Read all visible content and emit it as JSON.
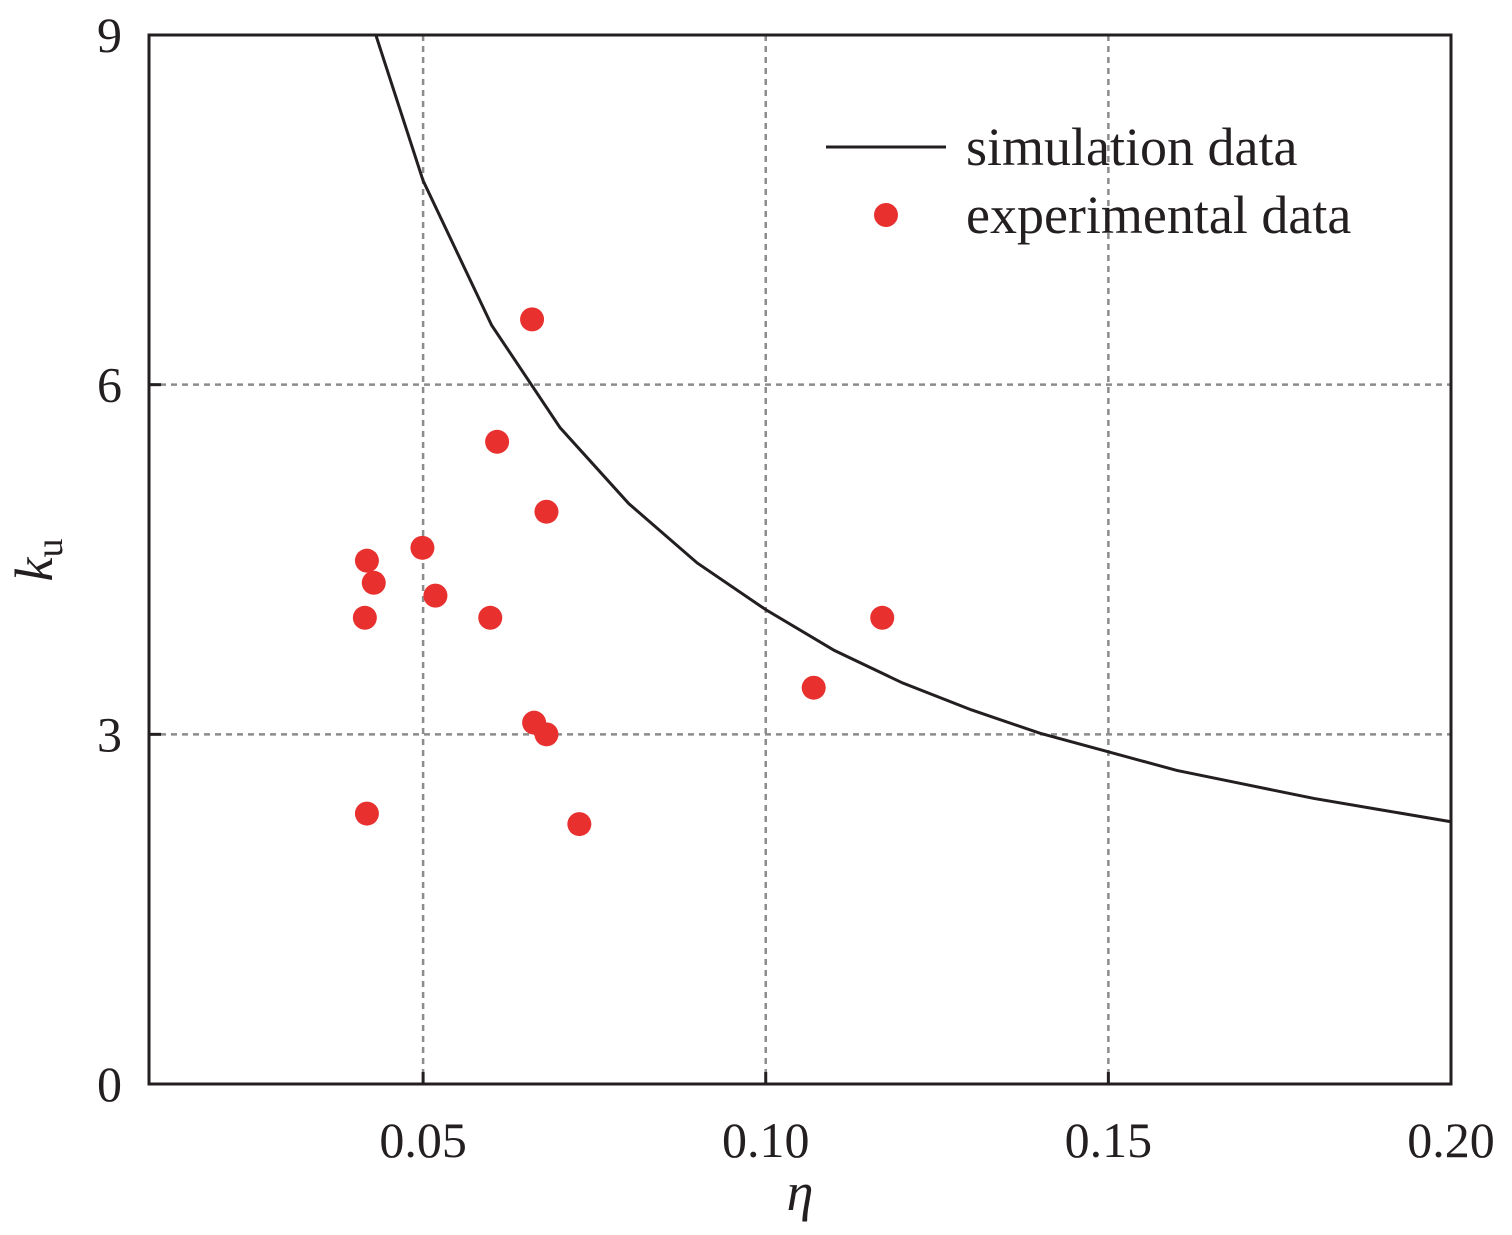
{
  "chart_data": {
    "type": "scatter",
    "title": "",
    "xlabel": "η",
    "ylabel": "k",
    "ylabel_sub": "u",
    "xlim": [
      0.01,
      0.2
    ],
    "ylim": [
      0,
      9
    ],
    "xticks": [
      0.05,
      0.1,
      0.15,
      0.2
    ],
    "xtick_labels": [
      "0.05",
      "0.10",
      "0.15",
      "0.20"
    ],
    "yticks": [
      0,
      3,
      6,
      9
    ],
    "ytick_labels": [
      "0",
      "3",
      "6",
      "9"
    ],
    "grid": true,
    "legend_position": "top-right",
    "colors": {
      "line": "#231f20",
      "points": "#e8312f",
      "grid": "#8c8c8c"
    },
    "series": [
      {
        "name": "simulation data",
        "kind": "line",
        "x": [
          0.0431,
          0.05,
          0.06,
          0.07,
          0.08,
          0.09,
          0.1,
          0.11,
          0.12,
          0.13,
          0.14,
          0.15,
          0.16,
          0.17,
          0.18,
          0.19,
          0.2
        ],
        "y": [
          9.0,
          7.75,
          6.51,
          5.63,
          4.98,
          4.47,
          4.07,
          3.72,
          3.44,
          3.21,
          3.01,
          2.85,
          2.69,
          2.57,
          2.45,
          2.35,
          2.25
        ]
      },
      {
        "name": "experimental data",
        "kind": "scatter",
        "x": [
          0.0659,
          0.0608,
          0.068,
          0.0499,
          0.0418,
          0.0428,
          0.0518,
          0.0415,
          0.0598,
          0.117,
          0.107,
          0.0662,
          0.068,
          0.0418,
          0.0728
        ],
        "y": [
          6.56,
          5.51,
          4.91,
          4.6,
          4.49,
          4.3,
          4.19,
          4.0,
          4.0,
          4.0,
          3.4,
          3.1,
          3.0,
          2.32,
          2.23
        ]
      }
    ]
  }
}
